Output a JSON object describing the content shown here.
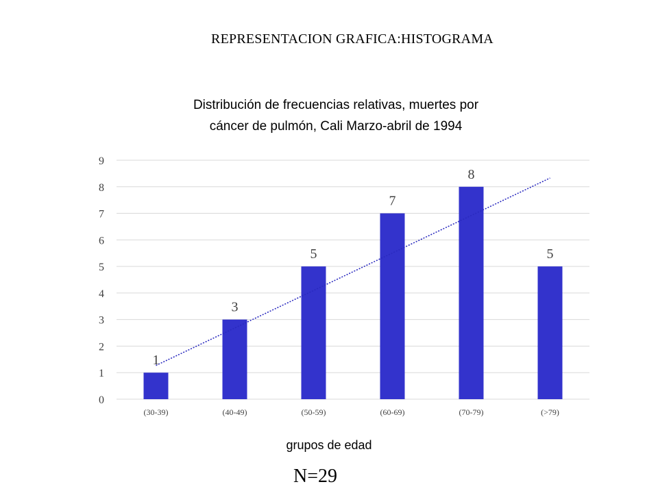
{
  "page": {
    "title": "REPRESENTACION GRAFICA:HISTOGRAMA",
    "n_label": "N=29"
  },
  "chart_data": {
    "type": "bar",
    "title": "Distribución de frecuencias relativas, muertes por cáncer de pulmón, Cali Marzo-abril de 1994",
    "title_lines": [
      "Distribución de frecuencias relativas, muertes por",
      "cáncer de pulmón, Cali Marzo-abril de 1994"
    ],
    "xlabel": "grupos de edad",
    "ylabel": "",
    "categories": [
      "(30-39)",
      "(40-49)",
      "(50-59)",
      "(60-69)",
      "(70-79)",
      "(>79)"
    ],
    "values": [
      1,
      3,
      5,
      7,
      8,
      5
    ],
    "data_labels": [
      "1",
      "3",
      "5",
      "7",
      "8",
      "5"
    ],
    "ylim": [
      0,
      9
    ],
    "yticks": [
      0,
      1,
      2,
      3,
      4,
      5,
      6,
      7,
      8,
      9
    ],
    "grid": true,
    "trendline": {
      "type": "linear",
      "style": "dotted",
      "start": 1.27,
      "end": 8.33
    },
    "colors": {
      "bar": "#3333CC",
      "trendline": "#2a2abf",
      "grid": "#d9d9d9"
    }
  }
}
